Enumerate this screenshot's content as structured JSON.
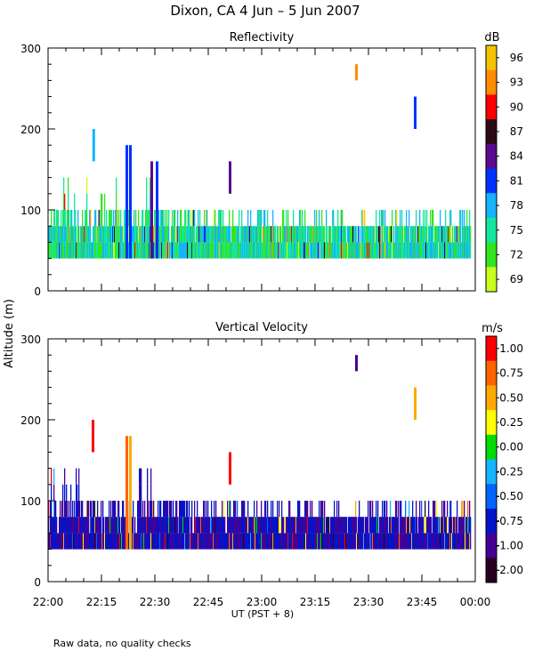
{
  "title": "Dixon, CA  4 Jun –  5 Jun 2007",
  "ylabel": "Altitude (m)",
  "xlabel": "UT  (PST + 8)",
  "footer": "Raw data, no quality checks",
  "chart_data": [
    {
      "type": "heatmap",
      "title": "Reflectivity",
      "ylim": [
        0,
        300
      ],
      "yticks": [
        0,
        100,
        200,
        300
      ],
      "xlim_minutes": [
        0,
        120
      ],
      "xtick_labels": [
        "22:00",
        "22:15",
        "22:30",
        "22:45",
        "23:00",
        "23:15",
        "23:30",
        "23:45",
        "00:00"
      ],
      "colorbar": {
        "unit": "dB",
        "ticks": [
          "96",
          "93",
          "90",
          "87",
          "84",
          "81",
          "78",
          "75",
          "72",
          "69"
        ],
        "colors": [
          "#f5c400",
          "#ff8c00",
          "#ff0000",
          "#2b0a14",
          "#5a0a8c",
          "#0032ff",
          "#14b4ff",
          "#14e6a0",
          "#32e61e",
          "#c8ff1e"
        ]
      },
      "layer_base": 40,
      "dominant_colors": [
        "#32e61e",
        "#14e6a0",
        "#14b4ff"
      ],
      "features": [
        {
          "minute": 12.7,
          "bottom": 160,
          "top": 200,
          "color": "#14b4ff"
        },
        {
          "minute": 22,
          "bottom": 40,
          "top": 180,
          "color": "#0032ff"
        },
        {
          "minute": 23,
          "bottom": 40,
          "top": 180,
          "color": "#0032ff"
        },
        {
          "minute": 29,
          "bottom": 40,
          "top": 160,
          "color": "#5a0a8c"
        },
        {
          "minute": 30.5,
          "bottom": 40,
          "top": 160,
          "color": "#0032ff"
        },
        {
          "minute": 51,
          "bottom": 120,
          "top": 160,
          "color": "#5a0a8c"
        },
        {
          "minute": 86.5,
          "bottom": 260,
          "top": 280,
          "color": "#ff8c00"
        },
        {
          "minute": 103,
          "bottom": 200,
          "top": 240,
          "color": "#0032ff"
        }
      ]
    },
    {
      "type": "heatmap",
      "title": "Vertical Velocity",
      "ylim": [
        0,
        300
      ],
      "yticks": [
        0,
        100,
        200,
        300
      ],
      "xlim_minutes": [
        0,
        120
      ],
      "xtick_labels": [
        "22:00",
        "22:15",
        "22:30",
        "22:45",
        "23:00",
        "23:15",
        "23:30",
        "23:45",
        "00:00"
      ],
      "colorbar": {
        "unit": "m/s",
        "ticks": [
          "1.00",
          "0.75",
          "0.50",
          "0.25",
          "0.00",
          "-0.25",
          "-0.50",
          "-0.75",
          "-1.00",
          "-2.00"
        ],
        "colors": [
          "#ff0000",
          "#ff6400",
          "#ffaa00",
          "#ffff00",
          "#00dc00",
          "#14b4ff",
          "#0064ff",
          "#0014c8",
          "#460096",
          "#28001e"
        ]
      },
      "layer_base": 40,
      "dominant_colors": [
        "#0014c8",
        "#460096"
      ],
      "features": [
        {
          "minute": 12.5,
          "bottom": 160,
          "top": 200,
          "color": "#ff0000"
        },
        {
          "minute": 22,
          "bottom": 40,
          "top": 180,
          "color": "#ff6400"
        },
        {
          "minute": 23,
          "bottom": 40,
          "top": 180,
          "color": "#ffaa00"
        },
        {
          "minute": 51,
          "bottom": 120,
          "top": 160,
          "color": "#ff0000"
        },
        {
          "minute": 86.5,
          "bottom": 260,
          "top": 280,
          "color": "#460096"
        },
        {
          "minute": 103,
          "bottom": 200,
          "top": 240,
          "color": "#ffaa00"
        }
      ]
    }
  ]
}
